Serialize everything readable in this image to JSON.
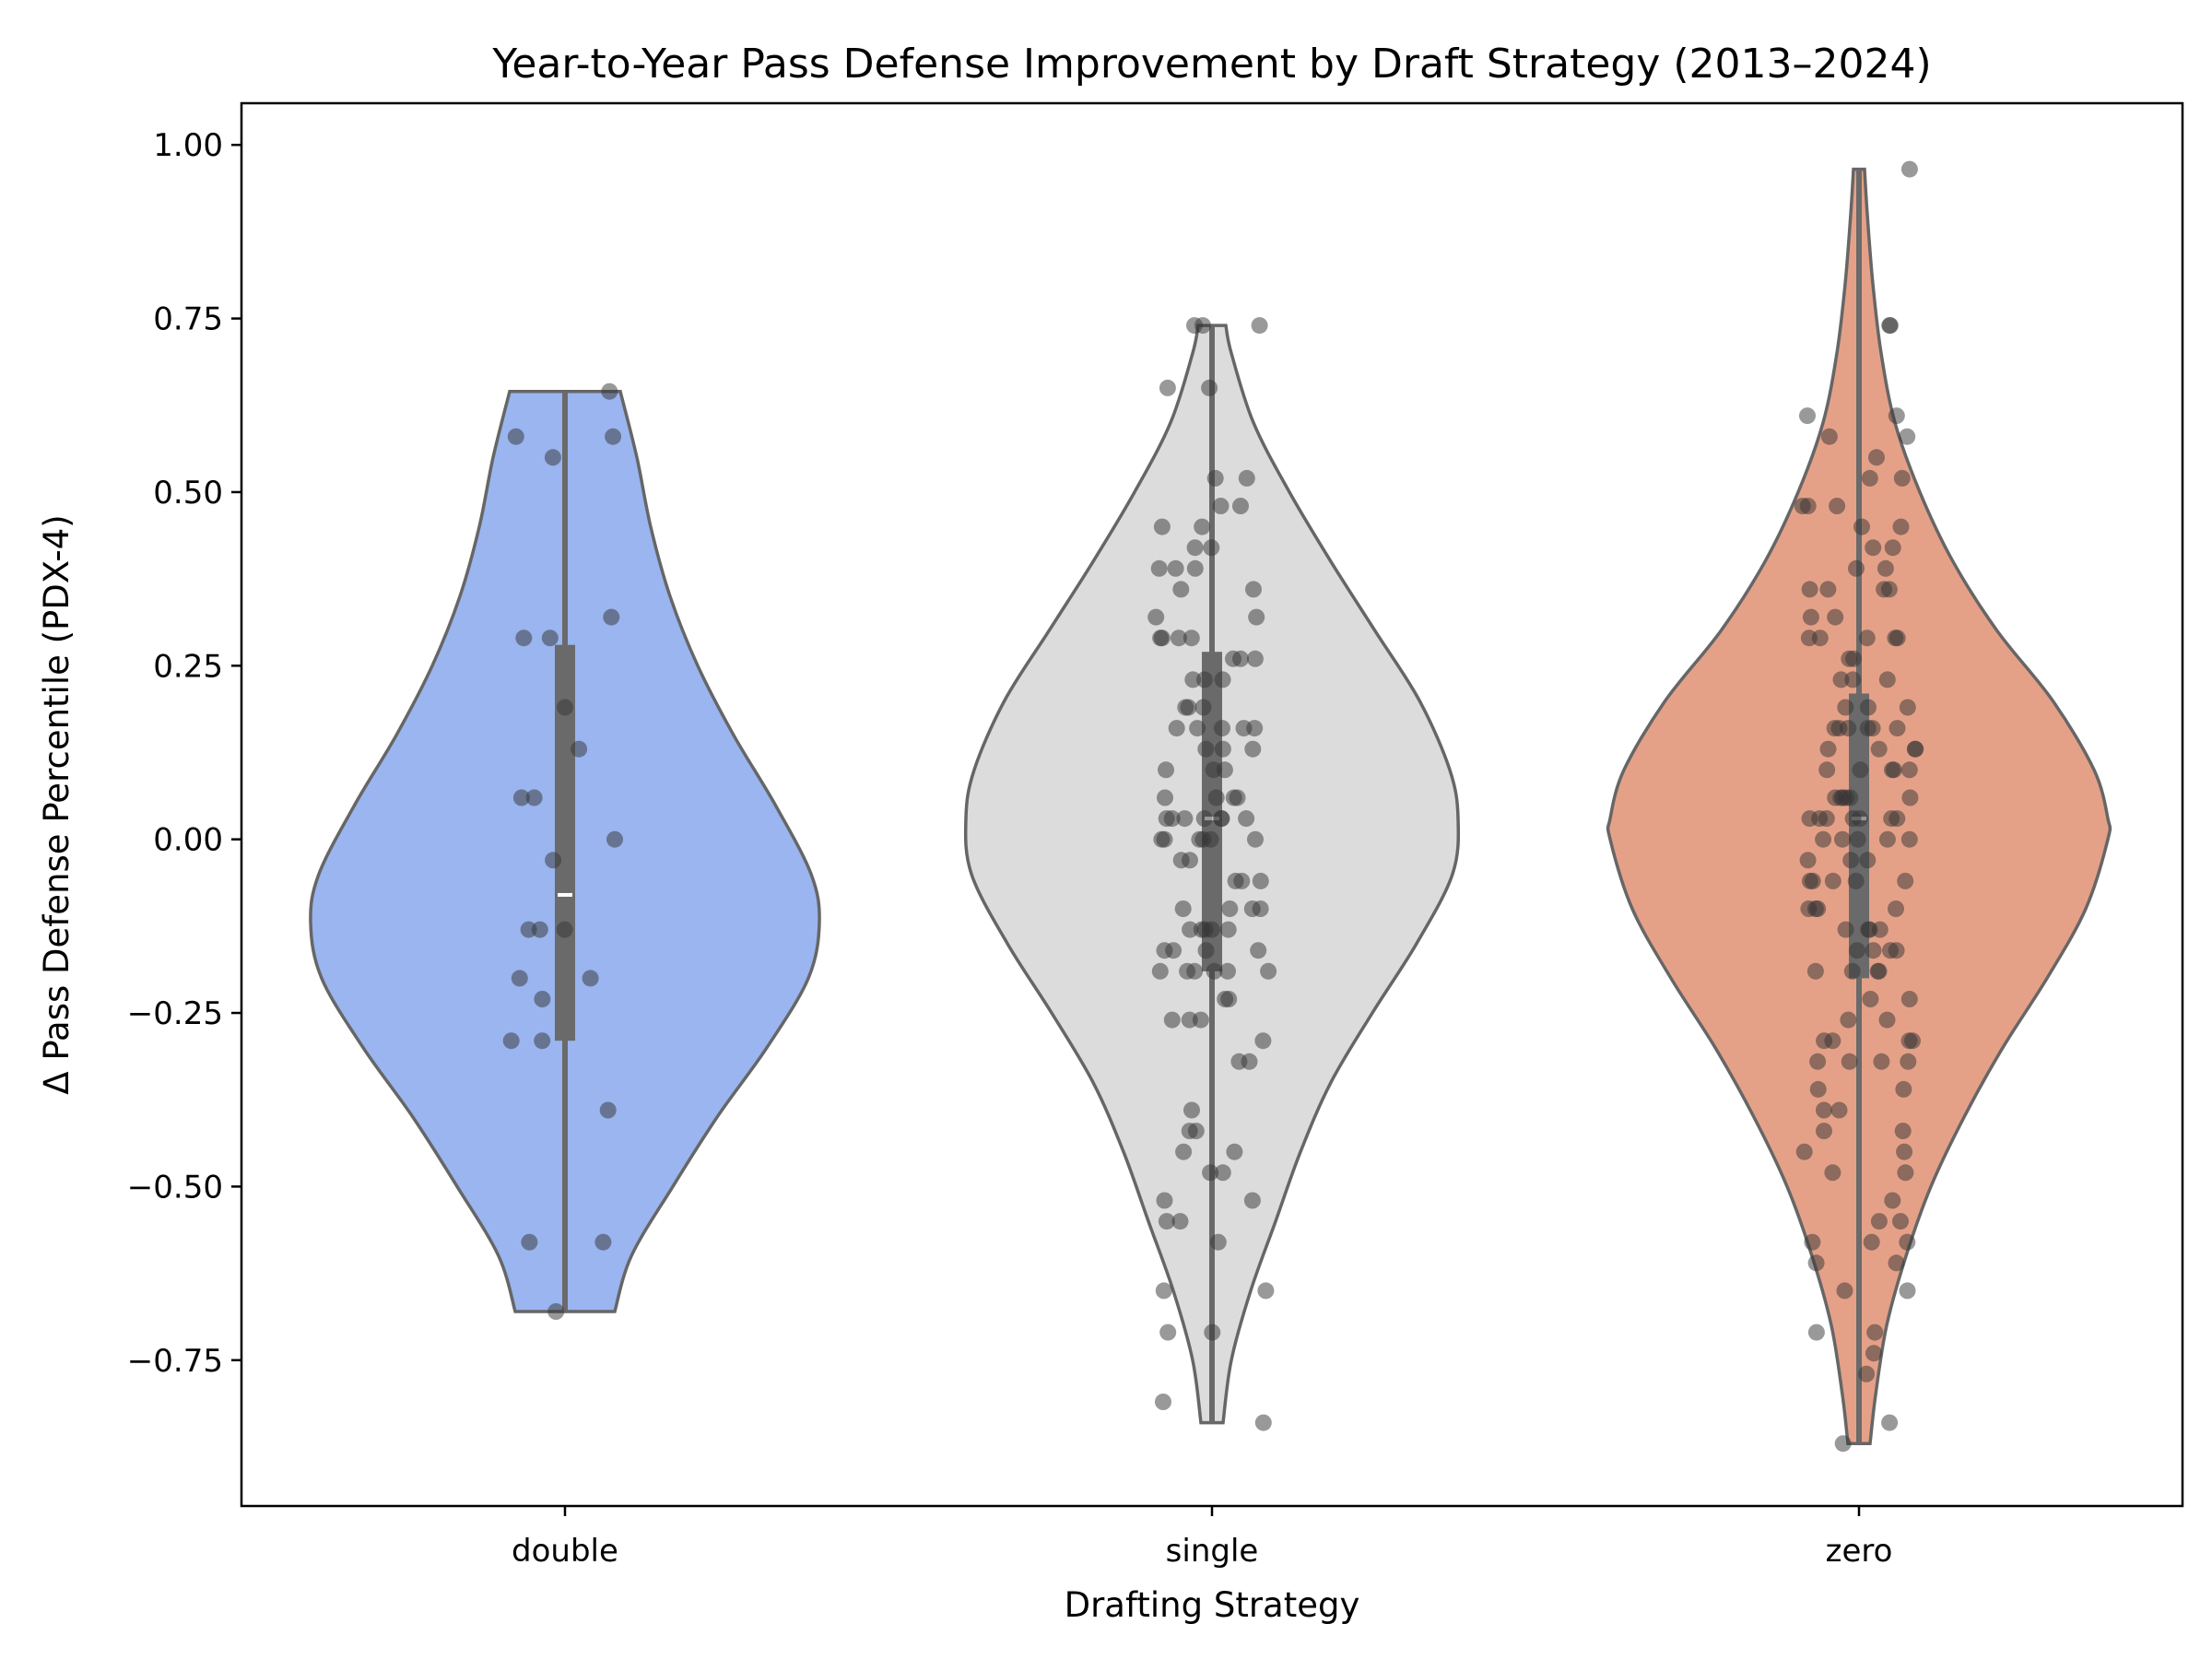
{
  "chart_data": {
    "type": "violin",
    "title": "Year-to-Year Pass Defense Improvement by Draft Strategy (2013–2024)",
    "xlabel": "Drafting Strategy",
    "ylabel": "Δ Pass Defense Percentile (PDX-4)",
    "ylim": [
      -0.96,
      1.06
    ],
    "yticks": [
      -0.75,
      -0.5,
      -0.25,
      0.0,
      0.25,
      0.5,
      0.75,
      1.0
    ],
    "ytick_labels": [
      "−0.75",
      "−0.50",
      "−0.25",
      "0.00",
      "0.25",
      "0.50",
      "0.75",
      "1.00"
    ],
    "grid": false,
    "legend": "none",
    "categories": [
      "double",
      "single",
      "zero"
    ],
    "colors": {
      "double": "#9ab5ef",
      "single": "#dcdcdc",
      "zero": "#e5a188",
      "outline": "#666666",
      "box": "#6a6a6a",
      "points": "#333333"
    },
    "violins": [
      {
        "category": "double",
        "min": -0.68,
        "max": 0.645,
        "q1": -0.29,
        "median": -0.08,
        "q3": 0.28,
        "density": [
          [
            -0.68,
            0.18
          ],
          [
            -0.6,
            0.24
          ],
          [
            -0.5,
            0.39
          ],
          [
            -0.4,
            0.55
          ],
          [
            -0.3,
            0.73
          ],
          [
            -0.2,
            0.88
          ],
          [
            -0.12,
            0.92
          ],
          [
            -0.05,
            0.89
          ],
          [
            0.05,
            0.76
          ],
          [
            0.15,
            0.61
          ],
          [
            0.25,
            0.48
          ],
          [
            0.35,
            0.38
          ],
          [
            0.45,
            0.31
          ],
          [
            0.55,
            0.26
          ],
          [
            0.645,
            0.2
          ]
        ],
        "points": [
          0.645,
          0.58,
          0.58,
          0.55,
          0.32,
          0.29,
          0.29,
          0.19,
          0.13,
          0.06,
          0.06,
          0.0,
          -0.03,
          -0.13,
          -0.13,
          -0.13,
          -0.2,
          -0.2,
          -0.23,
          -0.29,
          -0.29,
          -0.39,
          -0.58,
          -0.58,
          -0.68
        ]
      },
      {
        "category": "single",
        "min": -0.84,
        "max": 0.74,
        "q1": -0.19,
        "median": 0.03,
        "q3": 0.27,
        "density": [
          [
            -0.84,
            0.04
          ],
          [
            -0.75,
            0.07
          ],
          [
            -0.65,
            0.14
          ],
          [
            -0.55,
            0.23
          ],
          [
            -0.45,
            0.32
          ],
          [
            -0.35,
            0.43
          ],
          [
            -0.25,
            0.58
          ],
          [
            -0.15,
            0.74
          ],
          [
            -0.05,
            0.87
          ],
          [
            0.03,
            0.89
          ],
          [
            0.1,
            0.86
          ],
          [
            0.2,
            0.75
          ],
          [
            0.3,
            0.59
          ],
          [
            0.4,
            0.43
          ],
          [
            0.5,
            0.28
          ],
          [
            0.6,
            0.15
          ],
          [
            0.7,
            0.07
          ],
          [
            0.74,
            0.05
          ]
        ],
        "points": [
          0.74,
          0.74,
          0.74,
          0.65,
          0.65,
          0.52,
          0.52,
          0.48,
          0.48,
          0.45,
          0.45,
          0.42,
          0.42,
          0.39,
          0.39,
          0.39,
          0.36,
          0.36,
          0.32,
          0.32,
          0.29,
          0.29,
          0.29,
          0.29,
          0.26,
          0.26,
          0.26,
          0.23,
          0.23,
          0.23,
          0.19,
          0.19,
          0.19,
          0.16,
          0.16,
          0.16,
          0.16,
          0.16,
          0.13,
          0.13,
          0.13,
          0.1,
          0.1,
          0.1,
          0.06,
          0.06,
          0.06,
          0.06,
          0.03,
          0.03,
          0.03,
          0.03,
          0.03,
          0.03,
          0.03,
          0.0,
          0.0,
          0.0,
          0.0,
          0.0,
          0.0,
          -0.03,
          -0.03,
          -0.06,
          -0.06,
          -0.06,
          -0.1,
          -0.1,
          -0.1,
          -0.1,
          -0.13,
          -0.13,
          -0.13,
          -0.13,
          -0.13,
          -0.16,
          -0.16,
          -0.16,
          -0.16,
          -0.19,
          -0.19,
          -0.19,
          -0.19,
          -0.19,
          -0.19,
          -0.23,
          -0.23,
          -0.26,
          -0.26,
          -0.26,
          -0.29,
          -0.32,
          -0.32,
          -0.39,
          -0.42,
          -0.42,
          -0.45,
          -0.45,
          -0.48,
          -0.48,
          -0.52,
          -0.52,
          -0.55,
          -0.55,
          -0.58,
          -0.65,
          -0.65,
          -0.71,
          -0.71,
          -0.81,
          -0.84
        ]
      },
      {
        "category": "zero",
        "min": -0.87,
        "max": 0.965,
        "q1": -0.2,
        "median": 0.03,
        "q3": 0.21,
        "density": [
          [
            -0.87,
            0.04
          ],
          [
            -0.8,
            0.06
          ],
          [
            -0.7,
            0.1
          ],
          [
            -0.6,
            0.17
          ],
          [
            -0.5,
            0.26
          ],
          [
            -0.4,
            0.38
          ],
          [
            -0.3,
            0.52
          ],
          [
            -0.2,
            0.68
          ],
          [
            -0.1,
            0.82
          ],
          [
            0.0,
            0.9
          ],
          [
            0.03,
            0.9
          ],
          [
            0.1,
            0.85
          ],
          [
            0.2,
            0.7
          ],
          [
            0.3,
            0.5
          ],
          [
            0.4,
            0.34
          ],
          [
            0.5,
            0.22
          ],
          [
            0.6,
            0.13
          ],
          [
            0.7,
            0.08
          ],
          [
            0.8,
            0.05
          ],
          [
            0.9,
            0.03
          ],
          [
            0.965,
            0.02
          ]
        ],
        "points": [
          0.965,
          0.74,
          0.74,
          0.61,
          0.61,
          0.58,
          0.58,
          0.55,
          0.52,
          0.52,
          0.48,
          0.48,
          0.48,
          0.45,
          0.45,
          0.42,
          0.42,
          0.39,
          0.39,
          0.36,
          0.36,
          0.36,
          0.36,
          0.32,
          0.32,
          0.29,
          0.29,
          0.29,
          0.29,
          0.29,
          0.26,
          0.26,
          0.23,
          0.23,
          0.23,
          0.19,
          0.19,
          0.19,
          0.16,
          0.16,
          0.16,
          0.16,
          0.16,
          0.16,
          0.13,
          0.13,
          0.13,
          0.13,
          0.1,
          0.1,
          0.1,
          0.1,
          0.1,
          0.06,
          0.06,
          0.06,
          0.06,
          0.06,
          0.06,
          0.03,
          0.03,
          0.03,
          0.03,
          0.03,
          0.03,
          0.03,
          0.0,
          0.0,
          0.0,
          0.0,
          0.0,
          -0.03,
          -0.03,
          -0.03,
          -0.06,
          -0.06,
          -0.06,
          -0.06,
          -0.06,
          -0.1,
          -0.1,
          -0.1,
          -0.1,
          -0.13,
          -0.13,
          -0.13,
          -0.13,
          -0.16,
          -0.16,
          -0.16,
          -0.16,
          -0.19,
          -0.19,
          -0.19,
          -0.19,
          -0.23,
          -0.23,
          -0.26,
          -0.26,
          -0.29,
          -0.29,
          -0.29,
          -0.29,
          -0.32,
          -0.32,
          -0.32,
          -0.32,
          -0.36,
          -0.36,
          -0.39,
          -0.39,
          -0.42,
          -0.42,
          -0.45,
          -0.45,
          -0.48,
          -0.48,
          -0.52,
          -0.55,
          -0.55,
          -0.58,
          -0.58,
          -0.58,
          -0.61,
          -0.61,
          -0.65,
          -0.65,
          -0.71,
          -0.71,
          -0.74,
          -0.77,
          -0.84,
          -0.87
        ]
      }
    ]
  }
}
